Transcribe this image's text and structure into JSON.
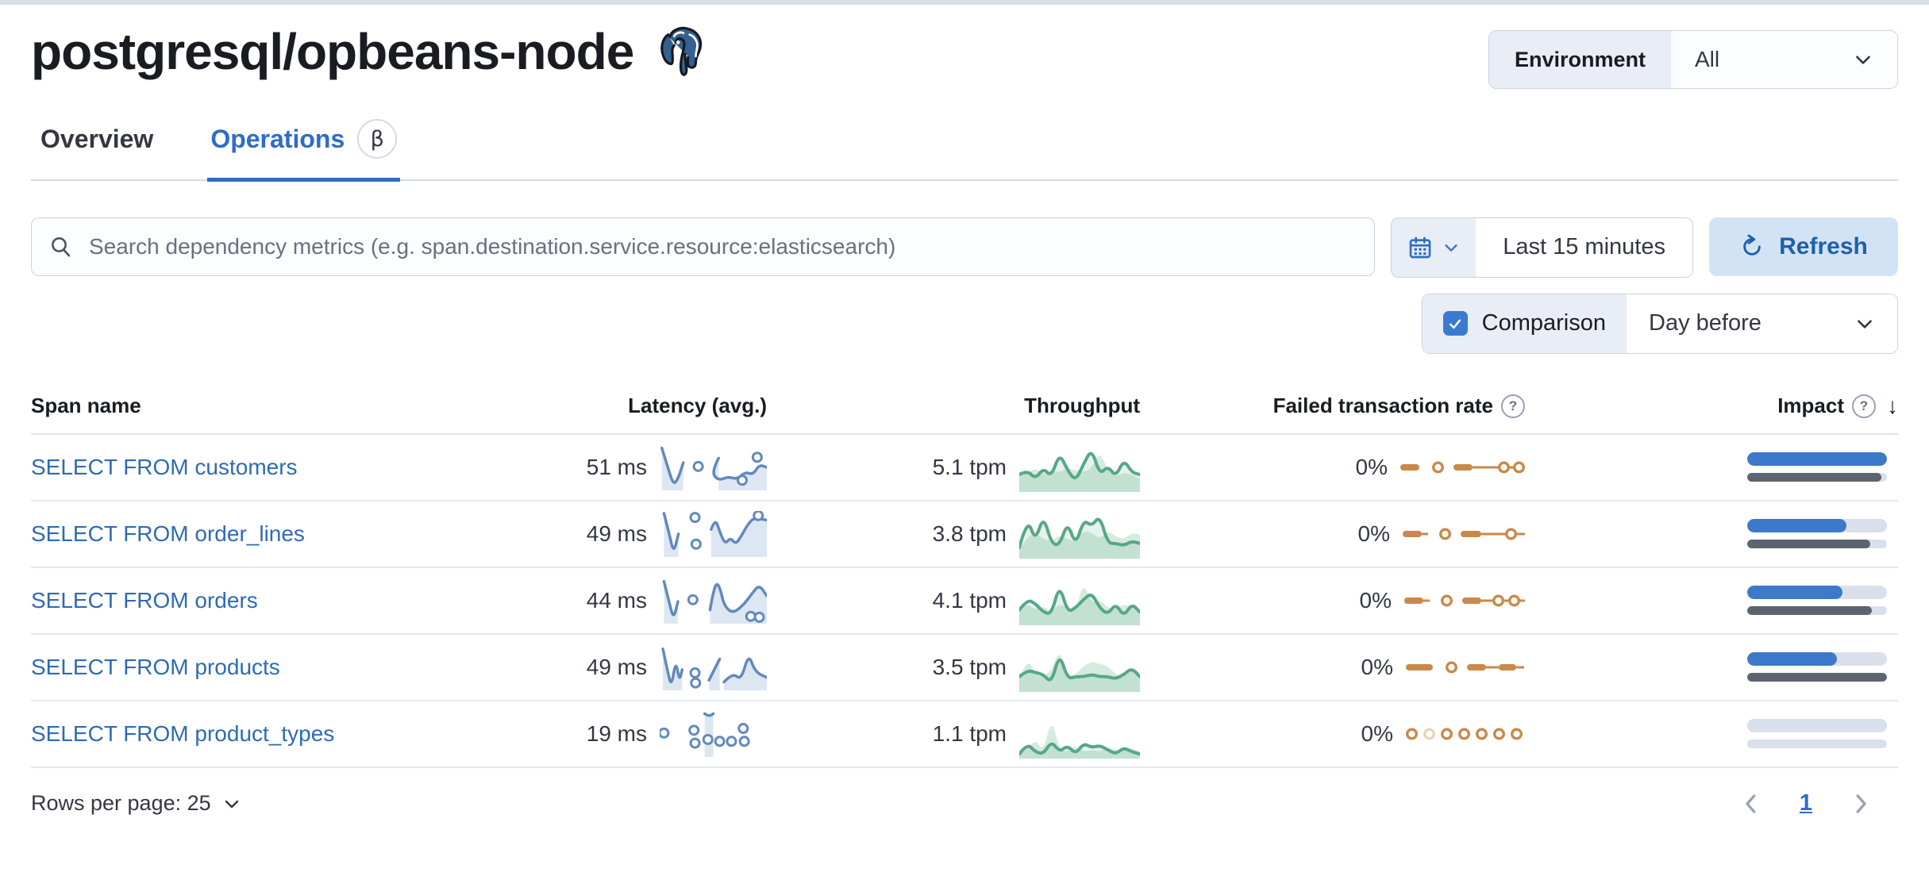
{
  "header": {
    "title": "postgresql/opbeans-node",
    "environment_label": "Environment",
    "environment_value": "All"
  },
  "tabs": [
    {
      "label": "Overview",
      "active": false
    },
    {
      "label": "Operations",
      "active": true,
      "badge": "β"
    }
  ],
  "toolbar": {
    "search_placeholder": "Search dependency metrics (e.g. span.destination.service.resource:elasticsearch)",
    "time_range": "Last 15 minutes",
    "refresh_label": "Refresh",
    "comparison_label": "Comparison",
    "comparison_checked": true,
    "comparison_value": "Day before"
  },
  "table": {
    "columns": [
      "Span name",
      "Latency (avg.)",
      "Throughput",
      "Failed transaction rate",
      "Impact"
    ],
    "rows": [
      {
        "span_name": "SELECT FROM customers",
        "latency": "51 ms",
        "throughput": "5.1 tpm",
        "failed_rate": "0%",
        "impact": {
          "current": 100,
          "previous": 96
        },
        "latency_spark": {
          "line": [
            [
              0.02,
              0.08
            ],
            [
              0.07,
              0.45
            ],
            [
              0.13,
              0.9
            ],
            [
              0.18,
              0.7
            ],
            [
              0.22,
              0.4
            ],
            null,
            [
              0.55,
              0.3
            ],
            [
              0.51,
              0.48
            ],
            [
              0.5,
              0.68
            ],
            [
              0.56,
              0.78
            ],
            [
              0.64,
              0.7
            ],
            [
              0.72,
              0.76
            ],
            [
              0.8,
              0.6
            ],
            [
              0.87,
              0.66
            ],
            [
              0.93,
              0.44
            ],
            [
              1.0,
              0.5
            ]
          ],
          "dots": [
            [
              0.36,
              0.48
            ],
            [
              0.77,
              0.78
            ],
            [
              0.91,
              0.28
            ]
          ]
        },
        "throughput_spark": {
          "current": [
            0.35,
            0.45,
            0.25,
            0.5,
            0.3,
            0.85,
            0.45,
            0.2,
            0.6,
            0.95,
            0.35,
            0.55,
            0.3,
            0.7,
            0.4,
            0.35
          ],
          "previous": [
            0.3,
            0.4,
            0.5,
            0.35,
            0.45,
            0.4,
            0.5,
            0.45,
            0.4,
            0.5,
            0.9,
            0.45,
            0.3,
            0.4,
            0.35,
            0.25
          ]
        },
        "failed_spark": [
          [
            "d",
            24
          ],
          [
            "g",
            16
          ],
          [
            "c",
            15
          ],
          [
            "g",
            12
          ],
          [
            "d",
            24
          ],
          [
            "t",
            32
          ],
          [
            "c",
            15
          ],
          [
            "t",
            4
          ],
          [
            "c",
            15
          ]
        ]
      },
      {
        "span_name": "SELECT FROM order_lines",
        "latency": "49 ms",
        "throughput": "3.8 tpm",
        "failed_rate": "0%",
        "impact": {
          "current": 71,
          "previous": 88
        },
        "latency_spark": {
          "line": [
            [
              0.04,
              0.05
            ],
            [
              0.09,
              0.5
            ],
            [
              0.13,
              0.92
            ],
            [
              0.175,
              0.5
            ],
            null,
            [
              0.48,
              0.4
            ],
            [
              0.52,
              0.16
            ],
            [
              0.56,
              0.45
            ],
            [
              0.61,
              0.72
            ],
            [
              0.66,
              0.58
            ],
            [
              0.71,
              0.72
            ],
            [
              0.76,
              0.55
            ],
            [
              0.82,
              0.3
            ],
            [
              0.88,
              0.14
            ],
            [
              1.0,
              0.2
            ]
          ],
          "dots": [
            [
              0.33,
              0.14
            ],
            [
              0.34,
              0.72
            ],
            [
              0.92,
              0.1
            ]
          ]
        },
        "throughput_spark": {
          "current": [
            0.2,
            0.9,
            0.35,
            0.95,
            0.3,
            0.25,
            0.8,
            0.25,
            0.85,
            0.7,
            0.95,
            0.3,
            0.3,
            0.25,
            0.35,
            0.3
          ],
          "previous": [
            0.15,
            0.45,
            0.55,
            0.4,
            0.35,
            0.5,
            0.4,
            0.35,
            0.6,
            0.55,
            0.4,
            0.6,
            0.45,
            0.4,
            0.55,
            0.5
          ]
        },
        "failed_spark": [
          [
            "d",
            24
          ],
          [
            "t",
            8
          ],
          [
            "g",
            14
          ],
          [
            "c",
            15
          ],
          [
            "g",
            12
          ],
          [
            "d",
            26
          ],
          [
            "t",
            30
          ],
          [
            "c",
            15
          ],
          [
            "t",
            10
          ]
        ]
      },
      {
        "span_name": "SELECT FROM orders",
        "latency": "44 ms",
        "throughput": "4.1 tpm",
        "failed_rate": "0%",
        "impact": {
          "current": 68,
          "previous": 89
        },
        "latency_spark": {
          "line": [
            [
              0.04,
              0.08
            ],
            [
              0.09,
              0.55
            ],
            [
              0.13,
              0.9
            ],
            [
              0.17,
              0.52
            ],
            null,
            [
              0.47,
              0.7
            ],
            [
              0.5,
              0.3
            ],
            [
              0.535,
              0.1
            ],
            [
              0.57,
              0.28
            ],
            [
              0.6,
              0.6
            ],
            [
              0.68,
              0.78
            ],
            [
              0.78,
              0.6
            ],
            [
              0.86,
              0.35
            ],
            [
              0.93,
              0.15
            ],
            [
              1.0,
              0.4
            ]
          ],
          "dots": [
            [
              0.31,
              0.48
            ],
            [
              0.85,
              0.84
            ],
            [
              0.93,
              0.86
            ]
          ]
        },
        "throughput_spark": {
          "current": [
            0.3,
            0.55,
            0.45,
            0.25,
            0.2,
            0.9,
            0.25,
            0.35,
            0.55,
            0.7,
            0.35,
            0.2,
            0.45,
            0.15,
            0.45,
            0.25
          ],
          "previous": [
            0.35,
            0.45,
            0.3,
            0.4,
            0.25,
            0.45,
            0.35,
            0.3,
            0.95,
            0.45,
            0.55,
            0.35,
            0.3,
            0.45,
            0.35,
            0.3
          ]
        },
        "failed_spark": [
          [
            "d",
            24
          ],
          [
            "t",
            8
          ],
          [
            "g",
            14
          ],
          [
            "c",
            15
          ],
          [
            "g",
            12
          ],
          [
            "d",
            24
          ],
          [
            "t",
            14
          ],
          [
            "c",
            15
          ],
          [
            "t",
            5
          ],
          [
            "c",
            15
          ],
          [
            "t",
            6
          ]
        ]
      },
      {
        "span_name": "SELECT FROM products",
        "latency": "49 ms",
        "throughput": "3.5 tpm",
        "failed_rate": "0%",
        "impact": {
          "current": 64,
          "previous": 100
        },
        "latency_spark": {
          "line": [
            [
              0.03,
              0.1
            ],
            [
              0.075,
              0.6
            ],
            [
              0.11,
              0.92
            ],
            [
              0.15,
              0.35
            ],
            [
              0.185,
              0.8
            ],
            [
              0.21,
              0.55
            ],
            null,
            [
              0.46,
              0.78
            ],
            [
              0.52,
              0.5
            ],
            [
              0.56,
              0.32
            ],
            null,
            [
              0.6,
              0.82
            ],
            [
              0.68,
              0.62
            ],
            [
              0.76,
              0.78
            ],
            [
              0.83,
              0.2
            ],
            [
              0.89,
              0.6
            ],
            [
              1.0,
              0.72
            ]
          ],
          "dots": [
            [
              0.33,
              0.62
            ],
            [
              0.335,
              0.84
            ]
          ]
        },
        "throughput_spark": {
          "current": [
            0.3,
            0.45,
            0.4,
            0.35,
            0.15,
            0.85,
            0.25,
            0.3,
            0.3,
            0.35,
            0.3,
            0.3,
            0.25,
            0.35,
            0.5,
            0.3
          ],
          "previous": [
            0.25,
            0.75,
            0.35,
            0.3,
            0.45,
            0.95,
            0.3,
            0.35,
            0.55,
            0.65,
            0.6,
            0.55,
            0.35,
            0.3,
            0.45,
            0.35
          ]
        },
        "failed_spark": [
          [
            "d",
            34
          ],
          [
            "g",
            16
          ],
          [
            "c",
            15
          ],
          [
            "g",
            12
          ],
          [
            "d",
            24
          ],
          [
            "t",
            16
          ],
          [
            "d",
            22
          ],
          [
            "t",
            10
          ]
        ]
      },
      {
        "span_name": "SELECT FROM product_types",
        "latency": "19 ms",
        "throughput": "1.1 tpm",
        "failed_rate": "0%",
        "impact": {
          "current": 0,
          "previous": 0
        },
        "latency_spark": {
          "line": [
            [
              0.42,
              0.06
            ],
            [
              0.46,
              0.12
            ],
            [
              0.5,
              0.06
            ]
          ],
          "dots": [
            [
              0.04,
              0.48
            ],
            [
              0.32,
              0.42
            ],
            [
              0.33,
              0.7
            ],
            [
              0.45,
              0.62
            ],
            [
              0.56,
              0.66
            ],
            [
              0.67,
              0.66
            ],
            [
              0.78,
              0.38
            ],
            [
              0.79,
              0.66
            ]
          ]
        },
        "throughput_spark": {
          "current": [
            0.05,
            0.3,
            0.1,
            0.05,
            0.35,
            0.1,
            0.25,
            0.05,
            0.3,
            0.2,
            0.25,
            0.15,
            0.05,
            0.2,
            0.1,
            0.05
          ],
          "previous": [
            0.05,
            0.15,
            0.4,
            0.1,
            0.9,
            0.15,
            0.1,
            0.25,
            0.1,
            0.15,
            0.1,
            0.2,
            0.15,
            0.1,
            0.2,
            0.1
          ]
        },
        "failed_spark": [
          [
            "c",
            15
          ],
          [
            "g",
            7
          ],
          [
            "f",
            15
          ],
          [
            "g",
            7
          ],
          [
            "c",
            15
          ],
          [
            "g",
            7
          ],
          [
            "c",
            15
          ],
          [
            "g",
            7
          ],
          [
            "c",
            15
          ],
          [
            "g",
            7
          ],
          [
            "c",
            15
          ],
          [
            "g",
            7
          ],
          [
            "c",
            15
          ]
        ]
      }
    ]
  },
  "footer": {
    "rows_per_page_label": "Rows per page: 25",
    "page": "1"
  },
  "colors": {
    "link_blue": "#2e6bb4",
    "tab_blue": "#2e6cc8",
    "impact_blue": "#3d79ca",
    "impact_gray": "#5d6470",
    "bar_track": "#dae0eb",
    "latency_blue": "#6289bd",
    "latency_fill": "#dde7f2",
    "throughput_green": "#57a788",
    "throughput_fill": "#d5ebdf",
    "failed_orange": "#c9894a",
    "failed_orange_faded": "#ecd4b8",
    "refresh_bg": "#d3e3f6",
    "refresh_text": "#1d60ab",
    "checkbox_blue": "#3b7ad1"
  }
}
